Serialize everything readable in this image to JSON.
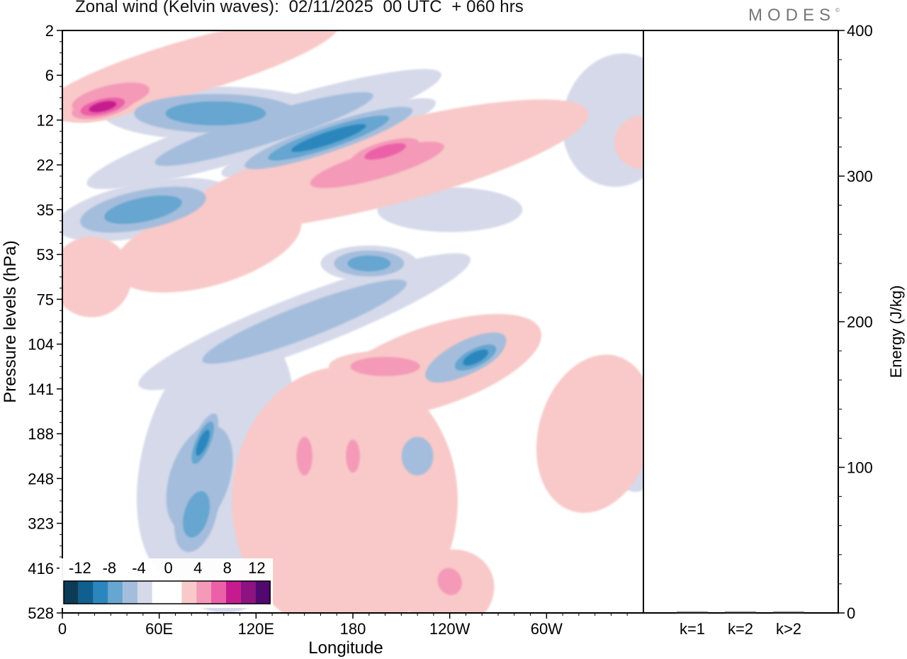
{
  "title": "Zonal wind (Kelvin waves):  02/11/2025  00 UTC  + 060 hrs",
  "brand": "MODES",
  "brand_mark": "©",
  "colors": {
    "neg": [
      "#0d3a56",
      "#0f5f8f",
      "#2b86bd",
      "#66a6d0",
      "#a5bddc",
      "#d5d9ea"
    ],
    "zero": "#ffffff",
    "pos": [
      "#f8c9c8",
      "#f49ab8",
      "#ec60a8",
      "#c41c8e",
      "#8e1282",
      "#52086e"
    ]
  },
  "chart_data": [
    {
      "type": "heatmap",
      "title": "Zonal wind (Kelvin waves)",
      "xlabel": "Longitude",
      "ylabel": "Pressure levels (hPa)",
      "x_ticks": [
        "0",
        "60E",
        "120E",
        "180",
        "120W",
        "60W"
      ],
      "x_range": [
        0,
        360
      ],
      "y_ticks": [
        "2",
        "6",
        "12",
        "22",
        "35",
        "53",
        "75",
        "104",
        "141",
        "188",
        "248",
        "323",
        "416",
        "528"
      ],
      "colorbar": {
        "labels": [
          "-12",
          "-8",
          "-4",
          "0",
          "4",
          "8",
          "12"
        ],
        "levels": [
          -14,
          -12,
          -10,
          -8,
          -6,
          -4,
          -2,
          2,
          4,
          6,
          8,
          10,
          12,
          14
        ]
      },
      "features": [
        {
          "sign": "neg",
          "level": 2,
          "lon": 125,
          "lev": 2.2,
          "dlon": 115,
          "dlev": 0.55,
          "tilt": -0.55
        },
        {
          "sign": "neg",
          "level": 4,
          "lon": 165,
          "lev": 2.4,
          "dlon": 70,
          "dlev": 0.4,
          "tilt": -0.6
        },
        {
          "sign": "neg",
          "level": 3,
          "lon": 50,
          "lev": 4.0,
          "dlon": 55,
          "dlev": 0.6,
          "tilt": -0.35
        },
        {
          "sign": "neg",
          "level": 3,
          "lon": 95,
          "lev": 1.85,
          "dlon": 70,
          "dlev": 0.6,
          "tilt": 0
        },
        {
          "sign": "neg",
          "level": 2,
          "lon": 150,
          "lev": 6.5,
          "dlon": 110,
          "dlev": 0.6,
          "tilt": -0.7
        },
        {
          "sign": "neg",
          "level": 3,
          "lon": 190,
          "lev": 5.2,
          "dlon": 30,
          "dlev": 0.4,
          "tilt": 0
        },
        {
          "sign": "neg",
          "level": 2,
          "lon": 85,
          "lev": 10.0,
          "dlon": 30,
          "dlev": 2.0,
          "tilt": 0.6
        },
        {
          "sign": "neg",
          "level": 3,
          "lon": 83,
          "lev": 10.8,
          "dlon": 17,
          "dlev": 1.2,
          "tilt": 0.5
        },
        {
          "sign": "neg",
          "level": 4,
          "lon": 87,
          "lev": 9.2,
          "dlon": 8,
          "dlev": 0.9,
          "tilt": 0.8
        },
        {
          "sign": "neg",
          "level": 1,
          "lon": 95,
          "lev": 9.5,
          "dlon": 45,
          "dlev": 3.0,
          "tilt": 0.5
        },
        {
          "sign": "neg",
          "level": 1,
          "lon": 100,
          "lev": 12.0,
          "dlon": 30,
          "dlev": 1.0,
          "tilt": 0.3
        },
        {
          "sign": "neg",
          "level": 2,
          "lon": 250,
          "lev": 7.3,
          "dlon": 45,
          "dlev": 0.6,
          "tilt": -1.0
        },
        {
          "sign": "neg",
          "level": 4,
          "lon": 256,
          "lev": 7.3,
          "dlon": 25,
          "dlev": 0.35,
          "tilt": -1.0
        },
        {
          "sign": "neg",
          "level": 2,
          "lon": 220,
          "lev": 9.5,
          "dlon": 16,
          "dlev": 0.7,
          "tilt": 0
        },
        {
          "sign": "neg",
          "level": 1,
          "lon": 233,
          "lev": 12.5,
          "dlon": 18,
          "dlev": 0.55,
          "tilt": 0
        },
        {
          "sign": "neg",
          "level": 1,
          "lon": 355,
          "lev": 9.5,
          "dlon": 14,
          "dlev": 0.8,
          "tilt": 0
        },
        {
          "sign": "neg",
          "level": 1,
          "lon": 345,
          "lev": 2.0,
          "dlon": 35,
          "dlev": 1.5,
          "tilt": 0.4
        },
        {
          "sign": "neg",
          "level": 1,
          "lon": 240,
          "lev": 4.0,
          "dlon": 45,
          "dlev": 0.5,
          "tilt": 0
        },
        {
          "sign": "pos",
          "level": 2,
          "lon": 30,
          "lev": 1.5,
          "dlon": 40,
          "dlev": 0.45,
          "tilt": -0.4
        },
        {
          "sign": "pos",
          "level": 4,
          "lon": 25,
          "lev": 1.7,
          "dlon": 25,
          "dlev": 0.3,
          "tilt": -0.4
        },
        {
          "sign": "pos",
          "level": 1,
          "lon": 80,
          "lev": 0.8,
          "dlon": 95,
          "dlev": 0.6,
          "tilt": -0.5
        },
        {
          "sign": "pos",
          "level": 2,
          "lon": 195,
          "lev": 3.0,
          "dlon": 70,
          "dlev": 0.5,
          "tilt": -0.5
        },
        {
          "sign": "pos",
          "level": 3,
          "lon": 200,
          "lev": 2.7,
          "dlon": 30,
          "dlev": 0.3,
          "tilt": -0.5
        },
        {
          "sign": "pos",
          "level": 1,
          "lon": 200,
          "lev": 3.0,
          "dlon": 130,
          "dlev": 0.9,
          "tilt": -0.45
        },
        {
          "sign": "pos",
          "level": 1,
          "lon": 90,
          "lev": 4.8,
          "dlon": 60,
          "dlev": 0.9,
          "tilt": -0.5
        },
        {
          "sign": "pos",
          "level": 1,
          "lon": 18,
          "lev": 5.5,
          "dlon": 25,
          "dlev": 0.9,
          "tilt": -0.5
        },
        {
          "sign": "pos",
          "level": 1,
          "lon": 175,
          "lev": 10.5,
          "dlon": 70,
          "dlev": 3.0,
          "tilt": 0
        },
        {
          "sign": "pos",
          "level": 1,
          "lon": 230,
          "lev": 7.5,
          "dlon": 70,
          "dlev": 0.9,
          "tilt": -0.6
        },
        {
          "sign": "pos",
          "level": 2,
          "lon": 200,
          "lev": 7.5,
          "dlon": 35,
          "dlev": 0.35,
          "tilt": 0
        },
        {
          "sign": "pos",
          "level": 2,
          "lon": 150,
          "lev": 9.5,
          "dlon": 8,
          "dlev": 0.7,
          "tilt": 0
        },
        {
          "sign": "pos",
          "level": 2,
          "lon": 180,
          "lev": 9.5,
          "dlon": 7,
          "dlev": 0.6,
          "tilt": 0
        },
        {
          "sign": "pos",
          "level": 1,
          "lon": 240,
          "lev": 12.5,
          "dlon": 28,
          "dlev": 0.9,
          "tilt": -0.8
        },
        {
          "sign": "pos",
          "level": 2,
          "lon": 240,
          "lev": 12.3,
          "dlon": 12,
          "dlev": 0.5,
          "tilt": -0.8
        },
        {
          "sign": "pos",
          "level": 1,
          "lon": 330,
          "lev": 9.0,
          "dlon": 35,
          "dlev": 1.8,
          "tilt": 0.5
        },
        {
          "sign": "pos",
          "level": 1,
          "lon": 360,
          "lev": 2.5,
          "dlon": 18,
          "dlev": 0.6,
          "tilt": 0
        }
      ]
    },
    {
      "type": "bar",
      "title": "Energy",
      "ylabel": "Energy (J/kg)",
      "categories": [
        "k=1",
        "k=2",
        "k>2"
      ],
      "values": [
        0.3,
        0.3,
        0.3
      ],
      "ylim": [
        0,
        400
      ],
      "y_ticks": [
        0,
        100,
        200,
        300,
        400
      ]
    }
  ]
}
